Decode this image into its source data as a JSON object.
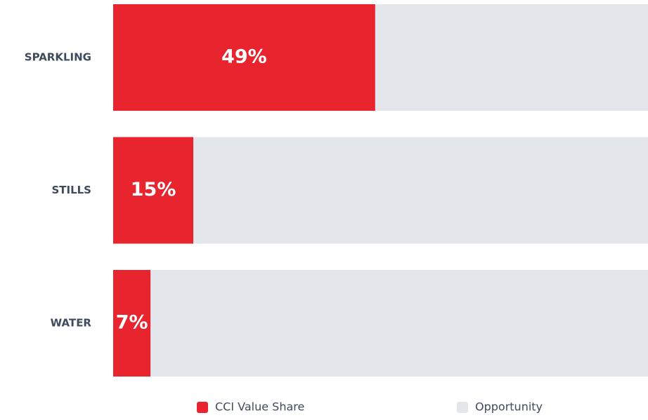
{
  "chart_data": {
    "type": "stacked-bar-horizontal",
    "categories": [
      "SPARKLING",
      "STILLS",
      "WATER"
    ],
    "series": [
      {
        "name": "CCI Value Share",
        "color": "#e8252f",
        "values": [
          49,
          15,
          7
        ],
        "value_labels": [
          "49%",
          "15%",
          "7%"
        ]
      },
      {
        "name": "Opportunity",
        "color": "#e3e6eb",
        "values": [
          51,
          85,
          93
        ]
      }
    ],
    "xlim": [
      0,
      100
    ]
  }
}
